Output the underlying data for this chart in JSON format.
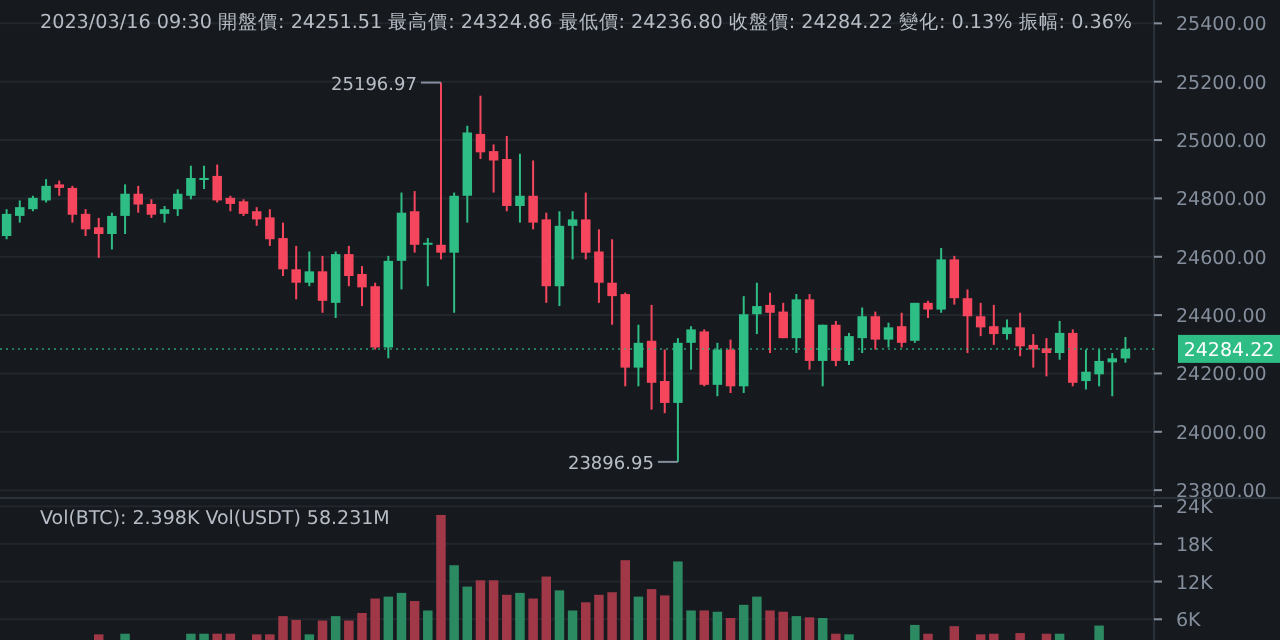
{
  "chart_data": [
    {
      "type": "candlestick",
      "title": "2023/03/16 09:30 開盤價: 24251.51 最高價: 24324.86 最低價: 24236.80 收盤價: 24284.22 變化: 0.13% 振幅: 0.36%",
      "categories": [
        null,
        null,
        null,
        null,
        null,
        null,
        null,
        null,
        null,
        null,
        null,
        null,
        null,
        null,
        null,
        null,
        null,
        null,
        null,
        null,
        null,
        null,
        null,
        null,
        null,
        null,
        null,
        null,
        null,
        null,
        null,
        null,
        null,
        null,
        null,
        null,
        null,
        null,
        null,
        null,
        null,
        null,
        null,
        null,
        null,
        null,
        null,
        null,
        null,
        null,
        null,
        null,
        null,
        null,
        null,
        null,
        null,
        null,
        null,
        null,
        null,
        null,
        null,
        null,
        null,
        null,
        null,
        null,
        null,
        null,
        null,
        null,
        null,
        null,
        null,
        null,
        null,
        null,
        null,
        null,
        null,
        null,
        null,
        null,
        null,
        null
      ],
      "ohlc": [
        [
          24671,
          24763,
          24660,
          24747
        ],
        [
          24740,
          24793,
          24717,
          24770
        ],
        [
          24763,
          24809,
          24756,
          24802
        ],
        [
          24793,
          24866,
          24786,
          24843
        ],
        [
          24848,
          24861,
          24809,
          24836
        ],
        [
          24836,
          24843,
          24717,
          24744
        ],
        [
          24747,
          24763,
          24671,
          24694
        ],
        [
          24701,
          24733,
          24596,
          24678
        ],
        [
          24678,
          24751,
          24625,
          24740
        ],
        [
          24740,
          24848,
          24678,
          24816
        ],
        [
          24816,
          24843,
          24751,
          24779
        ],
        [
          24781,
          24797,
          24733,
          24744
        ],
        [
          24747,
          24774,
          24717,
          24763
        ],
        [
          24763,
          24831,
          24740,
          24816
        ],
        [
          24809,
          24912,
          24797,
          24870
        ],
        [
          24866,
          24912,
          24832,
          24870
        ],
        [
          24877,
          24916,
          24786,
          24793
        ],
        [
          24802,
          24809,
          24756,
          24781
        ],
        [
          24790,
          24797,
          24740,
          24747
        ],
        [
          24756,
          24770,
          24706,
          24728
        ],
        [
          24735,
          24763,
          24637,
          24660
        ],
        [
          24664,
          24717,
          24534,
          24557
        ],
        [
          24557,
          24637,
          24454,
          24511
        ],
        [
          24511,
          24618,
          24499,
          24550
        ],
        [
          24550,
          24603,
          24408,
          24449
        ],
        [
          24442,
          24618,
          24390,
          24609
        ],
        [
          24609,
          24637,
          24499,
          24534
        ],
        [
          24541,
          24568,
          24431,
          24495
        ],
        [
          24499,
          24511,
          24282,
          24289
        ],
        [
          24289,
          24603,
          24252,
          24586
        ],
        [
          24586,
          24820,
          24488,
          24751
        ],
        [
          24756,
          24825,
          24614,
          24641
        ],
        [
          24641,
          24664,
          24499,
          24648
        ],
        [
          24641,
          25196.97,
          24591,
          24614
        ],
        [
          24614,
          24820,
          24408,
          24809
        ],
        [
          24809,
          25049,
          24717,
          25026
        ],
        [
          25021,
          25152,
          24935,
          24958
        ],
        [
          24962,
          24985,
          24820,
          24930
        ],
        [
          24935,
          25014,
          24756,
          24774
        ],
        [
          24774,
          24953,
          24717,
          24809
        ],
        [
          24809,
          24930,
          24694,
          24717
        ],
        [
          24728,
          24751,
          24442,
          24499
        ],
        [
          24499,
          24756,
          24431,
          24706
        ],
        [
          24706,
          24756,
          24591,
          24728
        ],
        [
          24728,
          24820,
          24591,
          24614
        ],
        [
          24618,
          24694,
          24442,
          24511
        ],
        [
          24511,
          24660,
          24367,
          24465
        ],
        [
          24472,
          24477,
          24156,
          24220
        ],
        [
          24220,
          24367,
          24156,
          24305
        ],
        [
          24312,
          24435,
          24076,
          24168
        ],
        [
          24174,
          24282,
          24064,
          24099
        ],
        [
          24099,
          24321,
          23896.95,
          24305
        ],
        [
          24305,
          24362,
          24213,
          24351
        ],
        [
          24344,
          24351,
          24156,
          24161
        ],
        [
          24161,
          24305,
          24122,
          24282
        ],
        [
          24282,
          24316,
          24133,
          24156
        ],
        [
          24156,
          24465,
          24133,
          24403
        ],
        [
          24403,
          24511,
          24335,
          24431
        ],
        [
          24435,
          24477,
          24270,
          24408
        ],
        [
          24412,
          24442,
          24321,
          24321
        ],
        [
          24321,
          24472,
          24270,
          24454
        ],
        [
          24454,
          24472,
          24213,
          24243
        ],
        [
          24243,
          24367,
          24156,
          24367
        ],
        [
          24367,
          24380,
          24225,
          24243
        ],
        [
          24243,
          24339,
          24229,
          24328
        ],
        [
          24321,
          24426,
          24270,
          24396
        ],
        [
          24396,
          24412,
          24282,
          24316
        ],
        [
          24316,
          24374,
          24289,
          24358
        ],
        [
          24362,
          24408,
          24289,
          24305
        ],
        [
          24312,
          24442,
          24305,
          24442
        ],
        [
          24442,
          24449,
          24390,
          24419
        ],
        [
          24419,
          24630,
          24408,
          24591
        ],
        [
          24591,
          24603,
          24436,
          24458
        ],
        [
          24458,
          24488,
          24270,
          24396
        ],
        [
          24396,
          24442,
          24328,
          24358
        ],
        [
          24362,
          24435,
          24298,
          24335
        ],
        [
          24335,
          24385,
          24316,
          24358
        ],
        [
          24358,
          24408,
          24259,
          24293
        ],
        [
          24298,
          24335,
          24220,
          24282
        ],
        [
          24286,
          24321,
          24190,
          24270
        ],
        [
          24270,
          24380,
          24247,
          24339
        ],
        [
          24339,
          24351,
          24156,
          24168
        ],
        [
          24174,
          24282,
          24145,
          24206
        ],
        [
          24197,
          24282,
          24156,
          24243
        ],
        [
          24238,
          24270,
          24122,
          24252
        ],
        [
          24251.51,
          24324.86,
          24236.8,
          24284.22
        ]
      ],
      "colors": [
        "#2ebd85",
        "#2ebd85",
        "#2ebd85",
        "#2ebd85",
        "#f6465d",
        "#f6465d",
        "#f6465d",
        "#f6465d",
        "#2ebd85",
        "#2ebd85",
        "#f6465d",
        "#f6465d",
        "#2ebd85",
        "#2ebd85",
        "#2ebd85",
        "#2ebd85",
        "#f6465d",
        "#f6465d",
        "#f6465d",
        "#f6465d",
        "#f6465d",
        "#f6465d",
        "#f6465d",
        "#2ebd85",
        "#f6465d",
        "#2ebd85",
        "#f6465d",
        "#f6465d",
        "#f6465d",
        "#2ebd85",
        "#2ebd85",
        "#f6465d",
        "#2ebd85",
        "#f6465d",
        "#2ebd85",
        "#2ebd85",
        "#f6465d",
        "#f6465d",
        "#f6465d",
        "#2ebd85",
        "#f6465d",
        "#f6465d",
        "#2ebd85",
        "#2ebd85",
        "#f6465d",
        "#f6465d",
        "#f6465d",
        "#f6465d",
        "#2ebd85",
        "#f6465d",
        "#f6465d",
        "#2ebd85",
        "#2ebd85",
        "#f6465d",
        "#2ebd85",
        "#f6465d",
        "#2ebd85",
        "#2ebd85",
        "#f6465d",
        "#f6465d",
        "#2ebd85",
        "#f6465d",
        "#2ebd85",
        "#f6465d",
        "#2ebd85",
        "#2ebd85",
        "#f6465d",
        "#2ebd85",
        "#f6465d",
        "#2ebd85",
        "#f6465d",
        "#2ebd85",
        "#f6465d",
        "#f6465d",
        "#f6465d",
        "#f6465d",
        "#2ebd85",
        "#f6465d",
        "#f6465d",
        "#f6465d",
        "#2ebd85",
        "#f6465d",
        "#2ebd85",
        "#2ebd85",
        "#2ebd85",
        "#2ebd85"
      ],
      "ylim": [
        23780,
        25480
      ],
      "yticks": [
        {
          "value": 23800,
          "label": "23800.00"
        },
        {
          "value": 24000,
          "label": "24000.00"
        },
        {
          "value": 24200,
          "label": "24200.00"
        },
        {
          "value": 24400,
          "label": "24400.00"
        },
        {
          "value": 24600,
          "label": "24600.00"
        },
        {
          "value": 24800,
          "label": "24800.00"
        },
        {
          "value": 25000,
          "label": "25000.00"
        },
        {
          "value": 25200,
          "label": "25200.00"
        },
        {
          "value": 25400,
          "label": "25400.00"
        }
      ],
      "grid": "y",
      "tick_labels": "y",
      "ref_lines": [
        {
          "axis": "y",
          "value": 24284.22,
          "label": "24284.22",
          "color": "#2ebd85",
          "line_style": "dotted"
        }
      ],
      "annotations": [
        "25196.97",
        "23896.95"
      ]
    },
    {
      "type": "bar",
      "title": "Vol(BTC): 2.398K Vol(USDT) 58.231M",
      "categories": [
        null,
        null,
        null,
        null,
        null,
        null,
        null,
        null,
        null,
        null,
        null,
        null,
        null,
        null,
        null,
        null,
        null,
        null,
        null,
        null,
        null,
        null,
        null,
        null,
        null,
        null,
        null,
        null,
        null,
        null,
        null,
        null,
        null,
        null,
        null,
        null,
        null,
        null,
        null,
        null,
        null,
        null,
        null,
        null,
        null,
        null,
        null,
        null,
        null,
        null,
        null,
        null,
        null,
        null,
        null,
        null,
        null,
        null,
        null,
        null,
        null,
        null,
        null,
        null,
        null,
        null,
        null,
        null,
        null,
        null,
        null,
        null,
        null,
        null,
        null,
        null,
        null,
        null,
        null,
        null,
        null,
        null,
        null,
        null,
        null,
        null
      ],
      "values": [
        null,
        null,
        null,
        null,
        null,
        null,
        null,
        3600,
        null,
        3700,
        null,
        null,
        null,
        null,
        3700,
        3700,
        3700,
        3700,
        null,
        3600,
        3600,
        6500,
        5900,
        3600,
        5800,
        6500,
        5800,
        7000,
        9300,
        9600,
        10200,
        8900,
        7400,
        22600,
        14600,
        11200,
        12200,
        12200,
        9900,
        10200,
        9300,
        12800,
        10600,
        7400,
        8700,
        9900,
        10300,
        15400,
        9600,
        10800,
        9800,
        15200,
        7400,
        7400,
        7200,
        6200,
        8300,
        9600,
        7400,
        7200,
        6500,
        6300,
        6200,
        3700,
        3600,
        null,
        null,
        null,
        null,
        5100,
        3700,
        null,
        4900,
        null,
        3600,
        3700,
        null,
        3800,
        null,
        3700,
        3700,
        null,
        null,
        5000,
        null,
        null
      ],
      "colors": [
        null,
        null,
        null,
        null,
        null,
        null,
        null,
        "#a13848",
        null,
        "#2b8a62",
        null,
        null,
        null,
        null,
        "#2b8a62",
        "#2b8a62",
        "#a13848",
        "#a13848",
        null,
        "#a13848",
        "#a13848",
        "#a13848",
        "#a13848",
        "#2b8a62",
        "#a13848",
        "#2b8a62",
        "#a13848",
        "#a13848",
        "#a13848",
        "#2b8a62",
        "#2b8a62",
        "#a13848",
        "#2b8a62",
        "#a13848",
        "#2b8a62",
        "#2b8a62",
        "#a13848",
        "#a13848",
        "#a13848",
        "#2b8a62",
        "#a13848",
        "#a13848",
        "#2b8a62",
        "#2b8a62",
        "#a13848",
        "#a13848",
        "#a13848",
        "#a13848",
        "#2b8a62",
        "#a13848",
        "#a13848",
        "#2b8a62",
        "#2b8a62",
        "#a13848",
        "#2b8a62",
        "#a13848",
        "#2b8a62",
        "#2b8a62",
        "#a13848",
        "#a13848",
        "#2b8a62",
        "#a13848",
        "#2b8a62",
        "#a13848",
        "#2b8a62",
        null,
        null,
        null,
        null,
        "#2b8a62",
        "#a13848",
        null,
        "#a13848",
        null,
        "#a13848",
        "#a13848",
        null,
        "#a13848",
        null,
        "#a13848",
        "#2b8a62",
        null,
        null,
        "#2b8a62",
        null,
        null
      ],
      "ylim": [
        2700,
        25300
      ],
      "yticks": [
        {
          "value": 6000,
          "label": "6K"
        },
        {
          "value": 12000,
          "label": "12K"
        },
        {
          "value": 18000,
          "label": "18K"
        },
        {
          "value": 24000,
          "label": "24K"
        }
      ],
      "grid": "y",
      "tick_labels": "y"
    }
  ]
}
